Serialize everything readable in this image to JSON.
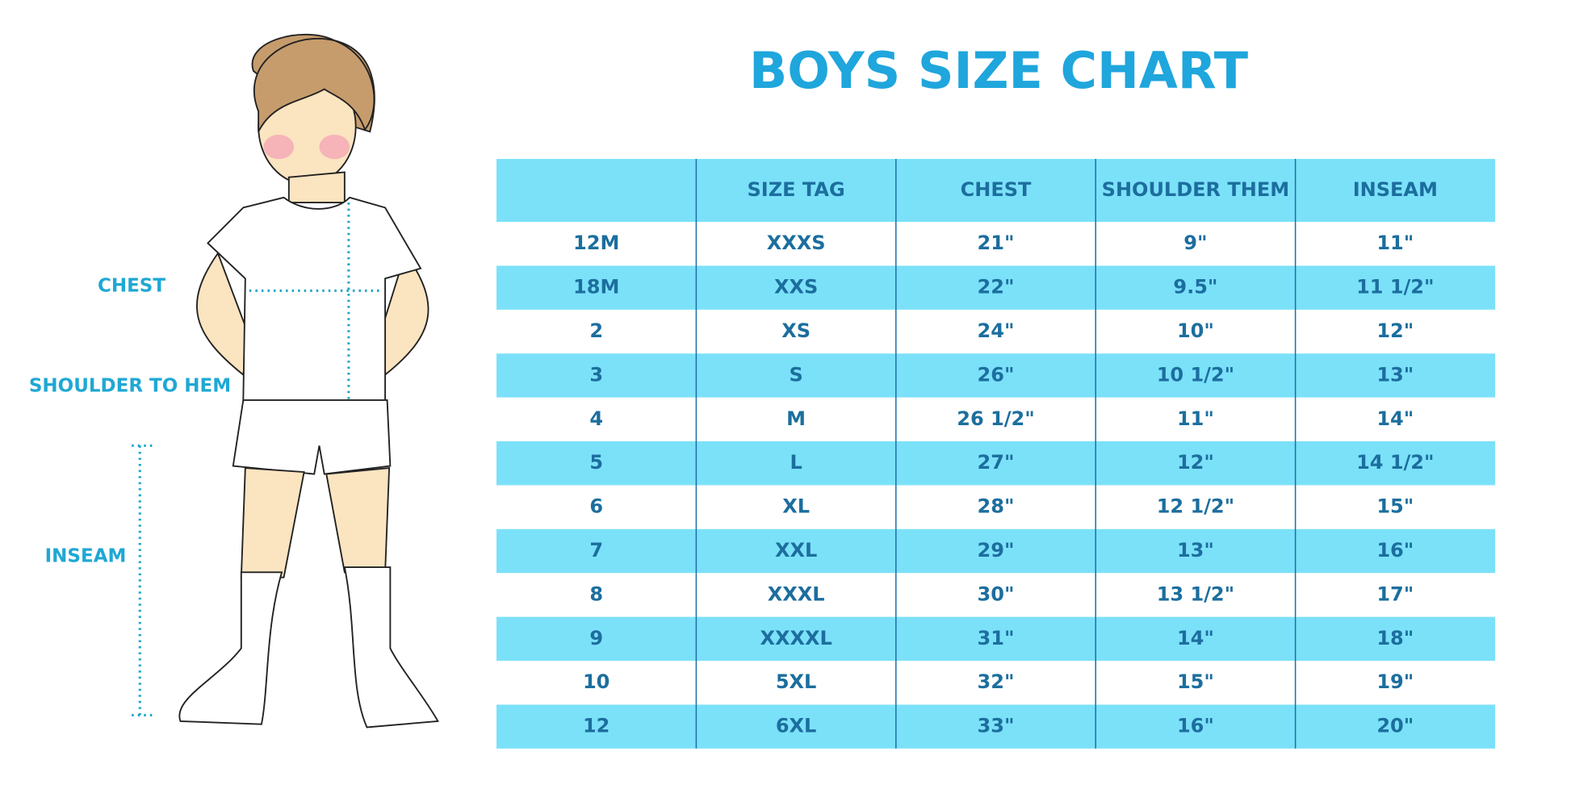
{
  "title": "BOYS SIZE CHART",
  "figure_labels": {
    "chest": "CHEST",
    "shoulder_to_hem": "SHOULDER TO HEM",
    "inseam": "INSEAM"
  },
  "table": {
    "header": [
      "SIZE TAG",
      "CHEST",
      "SHOULDER THEM",
      "INSEAM"
    ],
    "rows": [
      [
        "12M",
        "XXXS",
        "21\"",
        "9\"",
        "11\""
      ],
      [
        "18M",
        "XXS",
        "22\"",
        "9.5\"",
        "11 1/2\""
      ],
      [
        "2",
        "XS",
        "24\"",
        "10\"",
        "12\""
      ],
      [
        "3",
        "S",
        "26\"",
        "10 1/2\"",
        "13\""
      ],
      [
        "4",
        "M",
        "26 1/2\"",
        "11\"",
        "14\""
      ],
      [
        "5",
        "L",
        "27\"",
        "12\"",
        "14 1/2\""
      ],
      [
        "6",
        "XL",
        "28\"",
        "12 1/2\"",
        "15\""
      ],
      [
        "7",
        "XXL",
        "29\"",
        "13\"",
        "16\""
      ],
      [
        "8",
        "XXXL",
        "30\"",
        "13 1/2\"",
        "17\""
      ],
      [
        "9",
        "XXXXL",
        "31\"",
        "14\"",
        "18\""
      ],
      [
        "10",
        "5XL",
        "32\"",
        "15\"",
        "19\""
      ],
      [
        "12",
        "6XL",
        "33\"",
        "16\"",
        "20\""
      ]
    ]
  }
}
